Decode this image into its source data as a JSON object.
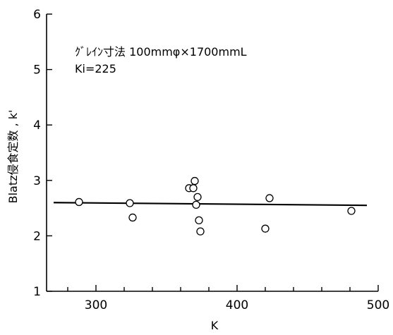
{
  "chart_data": {
    "type": "scatter",
    "title": "",
    "xlabel": "K",
    "ylabel": "Blatz侵食定数 , k'",
    "xlim": [
      265,
      500
    ],
    "ylim": [
      1,
      6
    ],
    "xticks": [
      300,
      400,
      500
    ],
    "xticks_minor": [
      280,
      320,
      340,
      360,
      380,
      420,
      440,
      460,
      480
    ],
    "yticks": [
      1,
      2,
      3,
      4,
      5,
      6
    ],
    "annotations": [
      "ｸﾞﾚｲﾝ寸法 100mmφ×1700mmL",
      "Ki=225"
    ],
    "grid": false,
    "series": [
      {
        "marker": "open-circle",
        "x": [
          288,
          324,
          326,
          366,
          369,
          370,
          371,
          372,
          373,
          374,
          420,
          423,
          481
        ],
        "y": [
          2.61,
          2.59,
          2.33,
          2.86,
          2.86,
          2.99,
          2.56,
          2.7,
          2.28,
          2.08,
          2.13,
          2.68,
          2.45
        ]
      }
    ],
    "fit_line": {
      "x": [
        270,
        492
      ],
      "y": [
        2.6,
        2.55
      ]
    }
  }
}
